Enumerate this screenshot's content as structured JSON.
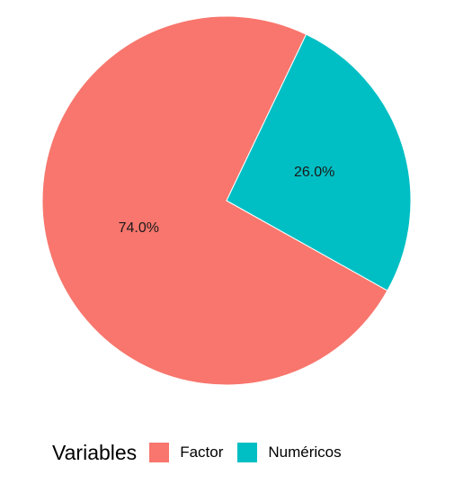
{
  "chart_data": {
    "type": "pie",
    "categories": [
      "Factor",
      "Numéricos"
    ],
    "values": [
      74.0,
      26.0
    ],
    "labels": [
      "74.0%",
      "26.0%"
    ],
    "colors": [
      "#F8766D",
      "#00BFC4"
    ],
    "legend": {
      "title": "Variables",
      "placement": "bottom"
    },
    "start_angle_deg": 25.6,
    "direction": "counterclockwise"
  }
}
